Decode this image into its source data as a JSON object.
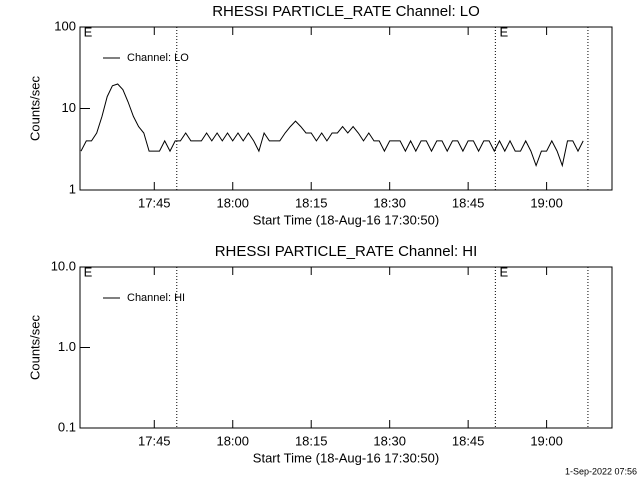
{
  "chart_data": [
    {
      "type": "line",
      "title": "RHESSI PARTICLE_RATE Channel: LO",
      "xlabel": "Start Time (18-Aug-16 17:30:50)",
      "ylabel": "Counts/sec",
      "x": [
        1051,
        1052,
        1053,
        1054,
        1055,
        1056,
        1057,
        1058,
        1059,
        1060,
        1061,
        1062,
        1063,
        1064,
        1065,
        1066,
        1067,
        1068,
        1069,
        1070,
        1071,
        1072,
        1073,
        1074,
        1075,
        1076,
        1077,
        1078,
        1079,
        1080,
        1081,
        1082,
        1083,
        1084,
        1085,
        1086,
        1087,
        1088,
        1089,
        1090,
        1091,
        1092,
        1093,
        1094,
        1095,
        1096,
        1097,
        1098,
        1099,
        1100,
        1101,
        1102,
        1103,
        1104,
        1105,
        1106,
        1107,
        1108,
        1109,
        1110,
        1111,
        1112,
        1113,
        1114,
        1115,
        1116,
        1117,
        1118,
        1119,
        1120,
        1121,
        1122,
        1123,
        1124,
        1125,
        1126,
        1127,
        1128,
        1129,
        1130,
        1131,
        1132,
        1133,
        1134,
        1135,
        1136,
        1137,
        1138,
        1139,
        1140,
        1141,
        1142,
        1143,
        1144,
        1145,
        1146,
        1147
      ],
      "series": [
        {
          "name": "Channel: LO",
          "color": "#000000",
          "values": [
            3,
            4,
            4,
            5,
            8,
            14,
            19,
            20,
            17,
            12,
            8,
            6,
            5,
            3,
            3,
            3,
            4,
            3,
            4,
            4,
            5,
            4,
            4,
            4,
            5,
            4,
            5,
            4,
            5,
            4,
            5,
            4,
            5,
            4,
            3,
            5,
            4,
            4,
            4,
            5,
            6,
            7,
            6,
            5,
            5,
            4,
            5,
            4,
            5,
            5,
            6,
            5,
            6,
            5,
            4,
            5,
            4,
            4,
            3,
            4,
            4,
            4,
            3,
            4,
            3,
            4,
            4,
            3,
            4,
            4,
            3,
            4,
            4,
            3,
            4,
            4,
            3,
            4,
            4,
            3,
            4,
            3,
            4,
            3,
            3,
            4,
            3,
            2,
            3,
            3,
            4,
            3,
            2,
            4,
            4,
            3,
            4
          ]
        }
      ],
      "xlim": [
        1050.8,
        1152.5
      ],
      "xticks": [
        {
          "value": 1065,
          "label": "17:45"
        },
        {
          "value": 1080,
          "label": "18:00"
        },
        {
          "value": 1095,
          "label": "18:15"
        },
        {
          "value": 1110,
          "label": "18:30"
        },
        {
          "value": 1125,
          "label": "18:45"
        },
        {
          "value": 1140,
          "label": "19:00"
        }
      ],
      "ylim": [
        1,
        100
      ],
      "yticks": [
        1,
        10,
        100
      ],
      "log_y": true,
      "legend": "upper left",
      "vlines": [
        1069.3,
        1130.2,
        1147.9
      ],
      "annotations": [
        {
          "text": "E",
          "x": 1051.5
        },
        {
          "text": "E",
          "x": 1131
        }
      ]
    },
    {
      "type": "line",
      "title": "RHESSI PARTICLE_RATE Channel: HI",
      "xlabel": "Start Time (18-Aug-16 17:30:50)",
      "ylabel": "Counts/sec",
      "x": [],
      "series": [
        {
          "name": "Channel: HI",
          "color": "#000000",
          "values": []
        }
      ],
      "xlim": [
        1050.8,
        1152.5
      ],
      "xticks": [
        {
          "value": 1065,
          "label": "17:45"
        },
        {
          "value": 1080,
          "label": "18:00"
        },
        {
          "value": 1095,
          "label": "18:15"
        },
        {
          "value": 1110,
          "label": "18:30"
        },
        {
          "value": 1125,
          "label": "18:45"
        },
        {
          "value": 1140,
          "label": "19:00"
        }
      ],
      "ylim": [
        0.1,
        10
      ],
      "yticks": [
        0.1,
        {
          "value": 1,
          "label": "1.0"
        },
        {
          "value": 10,
          "label": "10.0"
        }
      ],
      "log_y": true,
      "legend": "upper left",
      "vlines": [
        1069.3,
        1130.2,
        1147.9
      ],
      "annotations": [
        {
          "text": "E",
          "x": 1051.5
        },
        {
          "text": "E",
          "x": 1131
        }
      ]
    }
  ],
  "footer": "1-Sep-2022 07:56"
}
